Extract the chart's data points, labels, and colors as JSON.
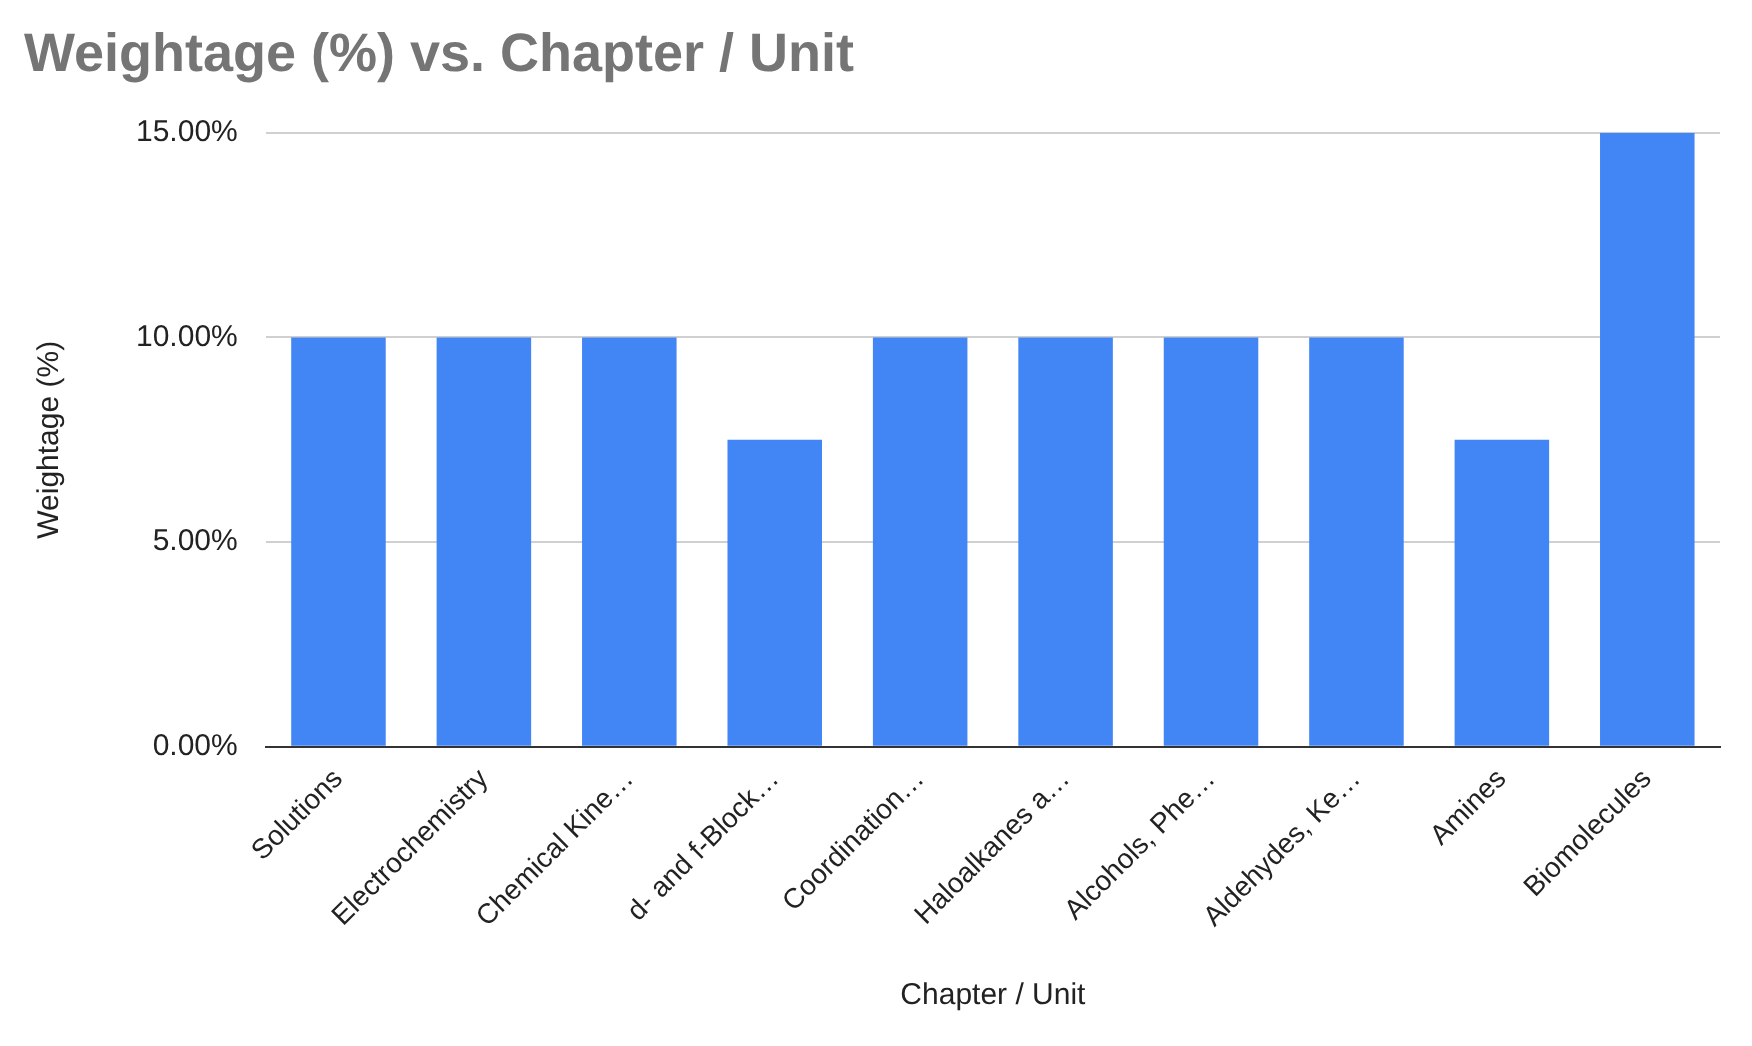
{
  "chart_data": {
    "type": "bar",
    "title": "Weightage (%) vs. Chapter / Unit",
    "xlabel": "Chapter / Unit",
    "ylabel": "Weightage (%)",
    "categories": [
      "Solutions",
      "Electrochemistry",
      "Chemical Kine…",
      "d- and f-Block…",
      "Coordination…",
      "Haloalkanes a…",
      "Alcohols, Phe…",
      "Aldehydes, Ke…",
      "Amines",
      "Biomolecules"
    ],
    "values": [
      10,
      10,
      10,
      7.5,
      10,
      10,
      10,
      10,
      7.5,
      15
    ],
    "color": "#4285f4",
    "ylim": [
      0,
      15
    ],
    "yticks": [
      {
        "value": 0,
        "label": "0.00%"
      },
      {
        "value": 5,
        "label": "5.00%"
      },
      {
        "value": 10,
        "label": "10.00%"
      },
      {
        "value": 15,
        "label": "15.00%"
      }
    ],
    "grid": "y",
    "legend": false
  }
}
